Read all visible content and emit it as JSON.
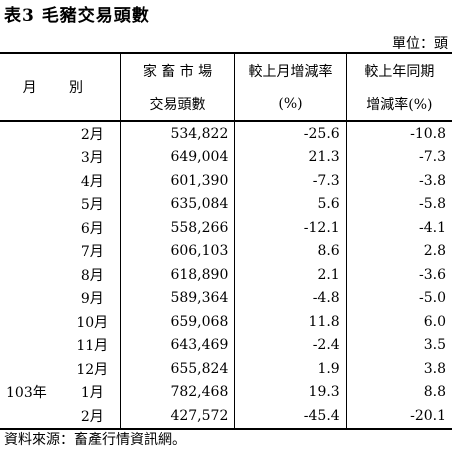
{
  "title": "表3 毛豬交易頭數",
  "unit": "單位：頭",
  "headers": {
    "month": "月 別",
    "volume_top": "家 畜 市 場",
    "volume_bottom": "交易頭數",
    "mom_top": "較上月增減率",
    "mom_bottom": "(%)",
    "yoy_top": "較上年同期",
    "yoy_bottom": "增減率(%)"
  },
  "rows": [
    {
      "year": "",
      "month": "2月",
      "volume": "534,822",
      "mom": "-25.6",
      "yoy": "-10.8"
    },
    {
      "year": "",
      "month": "3月",
      "volume": "649,004",
      "mom": "21.3",
      "yoy": "-7.3"
    },
    {
      "year": "",
      "month": "4月",
      "volume": "601,390",
      "mom": "-7.3",
      "yoy": "-3.8"
    },
    {
      "year": "",
      "month": "5月",
      "volume": "635,084",
      "mom": "5.6",
      "yoy": "-5.8"
    },
    {
      "year": "",
      "month": "6月",
      "volume": "558,266",
      "mom": "-12.1",
      "yoy": "-4.1"
    },
    {
      "year": "",
      "month": "7月",
      "volume": "606,103",
      "mom": "8.6",
      "yoy": "2.8"
    },
    {
      "year": "",
      "month": "8月",
      "volume": "618,890",
      "mom": "2.1",
      "yoy": "-3.6"
    },
    {
      "year": "",
      "month": "9月",
      "volume": "589,364",
      "mom": "-4.8",
      "yoy": "-5.0"
    },
    {
      "year": "",
      "month": "10月",
      "volume": "659,068",
      "mom": "11.8",
      "yoy": "6.0"
    },
    {
      "year": "",
      "month": "11月",
      "volume": "643,469",
      "mom": "-2.4",
      "yoy": "3.5"
    },
    {
      "year": "",
      "month": "12月",
      "volume": "655,824",
      "mom": "1.9",
      "yoy": "3.8"
    },
    {
      "year": "103年",
      "month": "1月",
      "volume": "782,468",
      "mom": "19.3",
      "yoy": "8.8"
    },
    {
      "year": "",
      "month": "2月",
      "volume": "427,572",
      "mom": "-45.4",
      "yoy": "-20.1"
    }
  ],
  "source": "資料來源：畜產行情資訊網。"
}
